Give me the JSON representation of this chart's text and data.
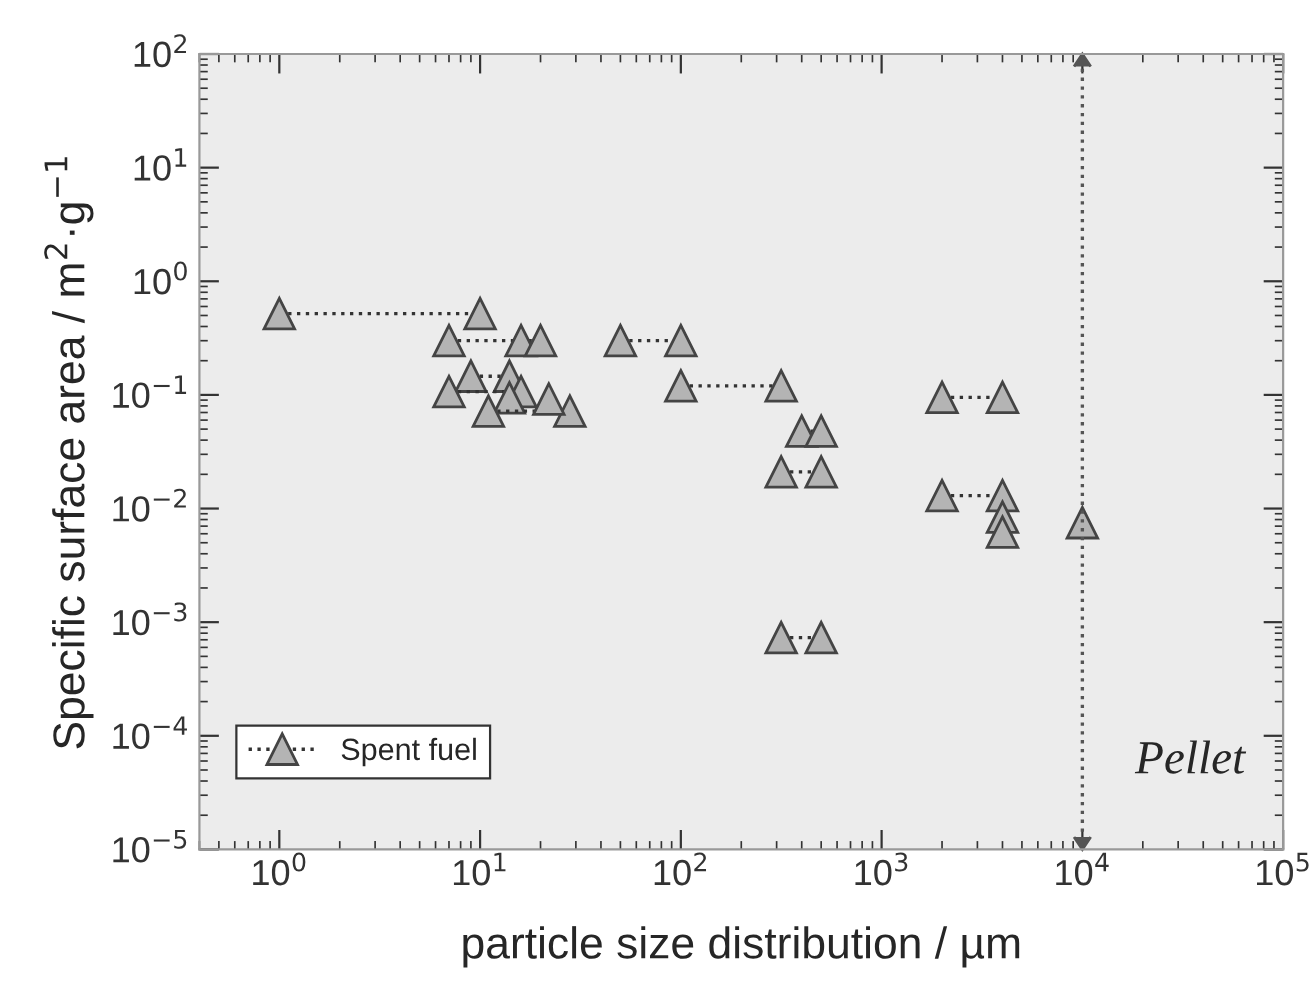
{
  "chart_data": {
    "type": "line",
    "xlabel": "particle size distribution / µm",
    "ylabel": "Specific surface area / m$^{2}$·g$^{−1}$",
    "marker": "triangle",
    "line_style": "dotted",
    "series": [
      {
        "name": "Spent fuel",
        "color": "#b4b4b4",
        "x": [
          1,
          10
        ],
        "values": [
          0.52,
          0.52
        ]
      },
      {
        "color": "#b4b4b4",
        "x": [
          7,
          16,
          20
        ],
        "values": [
          0.3,
          0.3,
          0.3
        ]
      },
      {
        "color": "#b4b4b4",
        "x": [
          9,
          14
        ],
        "values": [
          0.146,
          0.146
        ]
      },
      {
        "color": "#b4b4b4",
        "x": [
          7,
          16
        ],
        "values": [
          0.107,
          0.107
        ]
      },
      {
        "color": "#b4b4b4",
        "x": [
          14
        ],
        "values": [
          0.094
        ]
      },
      {
        "color": "#b4b4b4",
        "x": [
          11,
          28
        ],
        "values": [
          0.072,
          0.072
        ]
      },
      {
        "color": "#b4b4b4",
        "x": [
          22
        ],
        "values": [
          0.092
        ]
      },
      {
        "color": "#b4b4b4",
        "x": [
          50,
          100
        ],
        "values": [
          0.3,
          0.3
        ]
      },
      {
        "color": "#b4b4b4",
        "x": [
          100,
          316
        ],
        "values": [
          0.12,
          0.12
        ]
      },
      {
        "color": "#b4b4b4",
        "x": [
          400,
          500
        ],
        "values": [
          0.048,
          0.048
        ]
      },
      {
        "color": "#b4b4b4",
        "x": [
          316,
          500
        ],
        "values": [
          0.021,
          0.021
        ]
      },
      {
        "color": "#b4b4b4",
        "x": [
          316,
          500
        ],
        "values": [
          0.00073,
          0.00073
        ]
      },
      {
        "color": "#b4b4b4",
        "x": [
          2000,
          4000
        ],
        "values": [
          0.095,
          0.095
        ]
      },
      {
        "color": "#b4b4b4",
        "x": [
          2000,
          4000
        ],
        "values": [
          0.013,
          0.013
        ]
      },
      {
        "color": "#b4b4b4",
        "x": [
          4000
        ],
        "values": [
          0.0084
        ]
      },
      {
        "color": "#b4b4b4",
        "x": [
          4000
        ],
        "values": [
          0.0062
        ]
      },
      {
        "color": "#b4b4b4",
        "x": [
          10000
        ],
        "values": [
          0.0075
        ]
      }
    ],
    "log": "xy",
    "xlim": [
      0.4,
      100000
    ],
    "ylim": [
      1e-05,
      100
    ],
    "xticks": [
      {
        "value": 1,
        "label": "10$^{0}$"
      },
      {
        "value": 10,
        "label": "10$^{1}$"
      },
      {
        "value": 100,
        "label": "10$^{2}$"
      },
      {
        "value": 1000,
        "label": "10$^{3}$"
      },
      {
        "value": 10000,
        "label": "10$^{4}$"
      },
      {
        "value": 100000,
        "label": "10$^{5}$"
      }
    ],
    "yticks": [
      {
        "value": 1e-05,
        "label": "10$^{−5}$"
      },
      {
        "value": 0.0001,
        "label": "10$^{−4}$"
      },
      {
        "value": 0.001,
        "label": "10$^{−3}$"
      },
      {
        "value": 0.01,
        "label": "10$^{−2}$"
      },
      {
        "value": 0.1,
        "label": "10$^{−1}$"
      },
      {
        "value": 1,
        "label": "10$^{0}$"
      },
      {
        "value": 10,
        "label": "10$^{1}$"
      },
      {
        "value": 100,
        "label": "10$^{2}$"
      }
    ],
    "ref_lines": [
      {
        "axis": "x",
        "value": 10000,
        "label": "Pellet",
        "color": "#555555",
        "line_style": "dotted"
      }
    ],
    "grid": false,
    "legend": "bottom left"
  }
}
